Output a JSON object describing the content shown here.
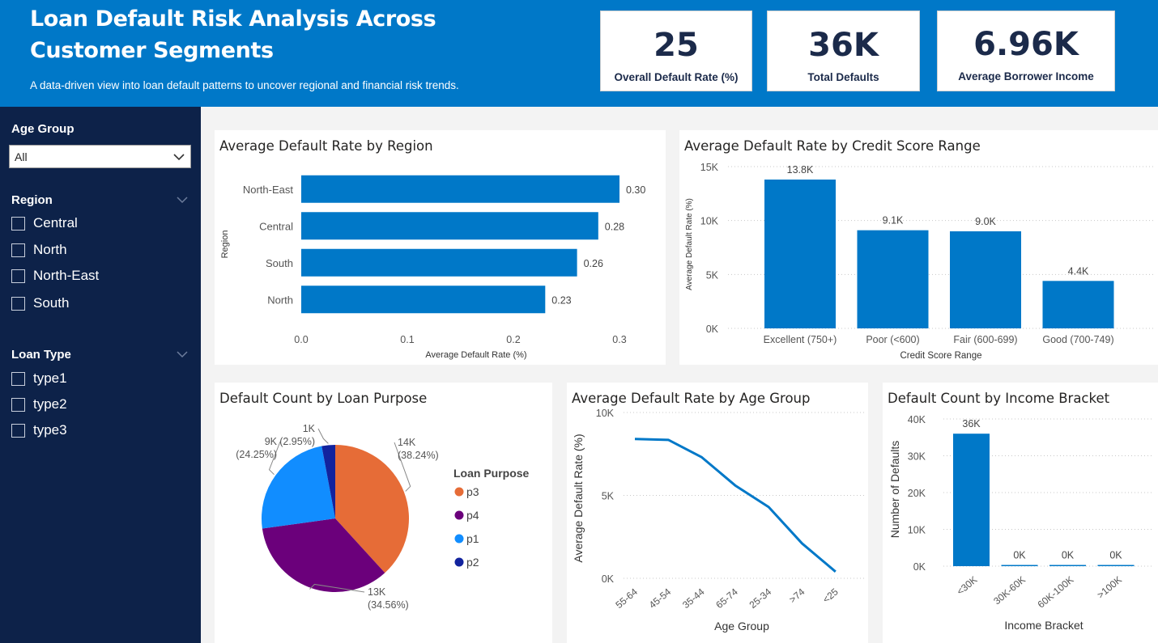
{
  "header": {
    "title_line1": "Loan Default Risk Analysis Across",
    "title_line2": "Customer Segments",
    "subtitle": "A data-driven view into loan default patterns to uncover regional and financial risk trends."
  },
  "kpis": [
    {
      "value": "25",
      "label": "Overall Default Rate (%)"
    },
    {
      "value": "36K",
      "label": "Total Defaults"
    },
    {
      "value": "6.96K",
      "label": "Average Borrower Income"
    }
  ],
  "filters": {
    "age_group": {
      "title": "Age Group",
      "selected": "All"
    },
    "region": {
      "title": "Region",
      "items": [
        "Central",
        "North",
        "North-East",
        "South"
      ]
    },
    "loan_type": {
      "title": "Loan Type",
      "items": [
        "type1",
        "type2",
        "type3"
      ]
    }
  },
  "colors": {
    "accent": "#0078c8",
    "sidebar": "#0d2249",
    "bar": "#0078c8",
    "p3": "#e66c37",
    "p4": "#6b007b",
    "p1": "#118dff",
    "p2": "#12239e"
  },
  "chart_data": [
    {
      "id": "region",
      "type": "bar",
      "orientation": "horizontal",
      "title": "Average Default Rate by Region",
      "xlabel": "Average Default Rate (%)",
      "ylabel": "Region",
      "categories": [
        "North-East",
        "Central",
        "South",
        "North"
      ],
      "values": [
        0.3,
        0.28,
        0.26,
        0.23
      ],
      "data_labels": [
        "0.30",
        "0.28",
        "0.26",
        "0.23"
      ],
      "xlim": [
        0,
        0.3
      ],
      "xticks": [
        "0.0",
        "0.1",
        "0.2",
        "0.3"
      ]
    },
    {
      "id": "credit",
      "type": "bar",
      "title": "Average Default Rate by Credit Score Range",
      "xlabel": "Credit Score Range",
      "ylabel": "Average Default Rate (%)",
      "categories": [
        "Excellent (750+)",
        "Poor (<600)",
        "Fair (600-699)",
        "Good (700-749)"
      ],
      "values": [
        13800,
        9100,
        9000,
        4400
      ],
      "data_labels": [
        "13.8K",
        "9.1K",
        "9.0K",
        "4.4K"
      ],
      "ylim": [
        0,
        15000
      ],
      "yticks": [
        {
          "v": 0,
          "t": "0K"
        },
        {
          "v": 5000,
          "t": "5K"
        },
        {
          "v": 10000,
          "t": "10K"
        },
        {
          "v": 15000,
          "t": "15K"
        }
      ]
    },
    {
      "id": "purpose",
      "type": "pie",
      "title": "Default Count by Loan Purpose",
      "legend_title": "Loan Purpose",
      "slices": [
        {
          "name": "p3",
          "value": 38.24,
          "label": "14K",
          "pct": "(38.24%)"
        },
        {
          "name": "p4",
          "value": 34.56,
          "label": "13K",
          "pct": "(34.56%)"
        },
        {
          "name": "p1",
          "value": 24.25,
          "label": "9K",
          "pct": "(24.25%)"
        },
        {
          "name": "p2",
          "value": 2.95,
          "label": "1K",
          "pct": "(2.95%)"
        }
      ]
    },
    {
      "id": "age",
      "type": "line",
      "title": "Average Default Rate by Age Group",
      "xlabel": "Age Group",
      "ylabel": "Average Default Rate (%)",
      "categories": [
        "55-64",
        "45-54",
        "35-44",
        "65-74",
        "25-34",
        ">74",
        "<25"
      ],
      "values": [
        8400,
        8350,
        7300,
        5600,
        4300,
        2100,
        400
      ],
      "ylim": [
        0,
        10000
      ],
      "yticks": [
        {
          "v": 0,
          "t": "0K"
        },
        {
          "v": 5000,
          "t": "5K"
        },
        {
          "v": 10000,
          "t": "10K"
        }
      ]
    },
    {
      "id": "income",
      "type": "bar",
      "title": "Default Count by Income Bracket",
      "xlabel": "Income Bracket",
      "ylabel": "Number of Defaults",
      "categories": [
        "<30K",
        "30K-60K",
        "60K-100K",
        ">100K"
      ],
      "values": [
        36000,
        0,
        0,
        0
      ],
      "data_labels": [
        "36K",
        "0K",
        "0K",
        "0K"
      ],
      "ylim": [
        0,
        40000
      ],
      "yticks": [
        {
          "v": 0,
          "t": "0K"
        },
        {
          "v": 10000,
          "t": "10K"
        },
        {
          "v": 20000,
          "t": "20K"
        },
        {
          "v": 30000,
          "t": "30K"
        },
        {
          "v": 40000,
          "t": "40K"
        }
      ]
    }
  ]
}
